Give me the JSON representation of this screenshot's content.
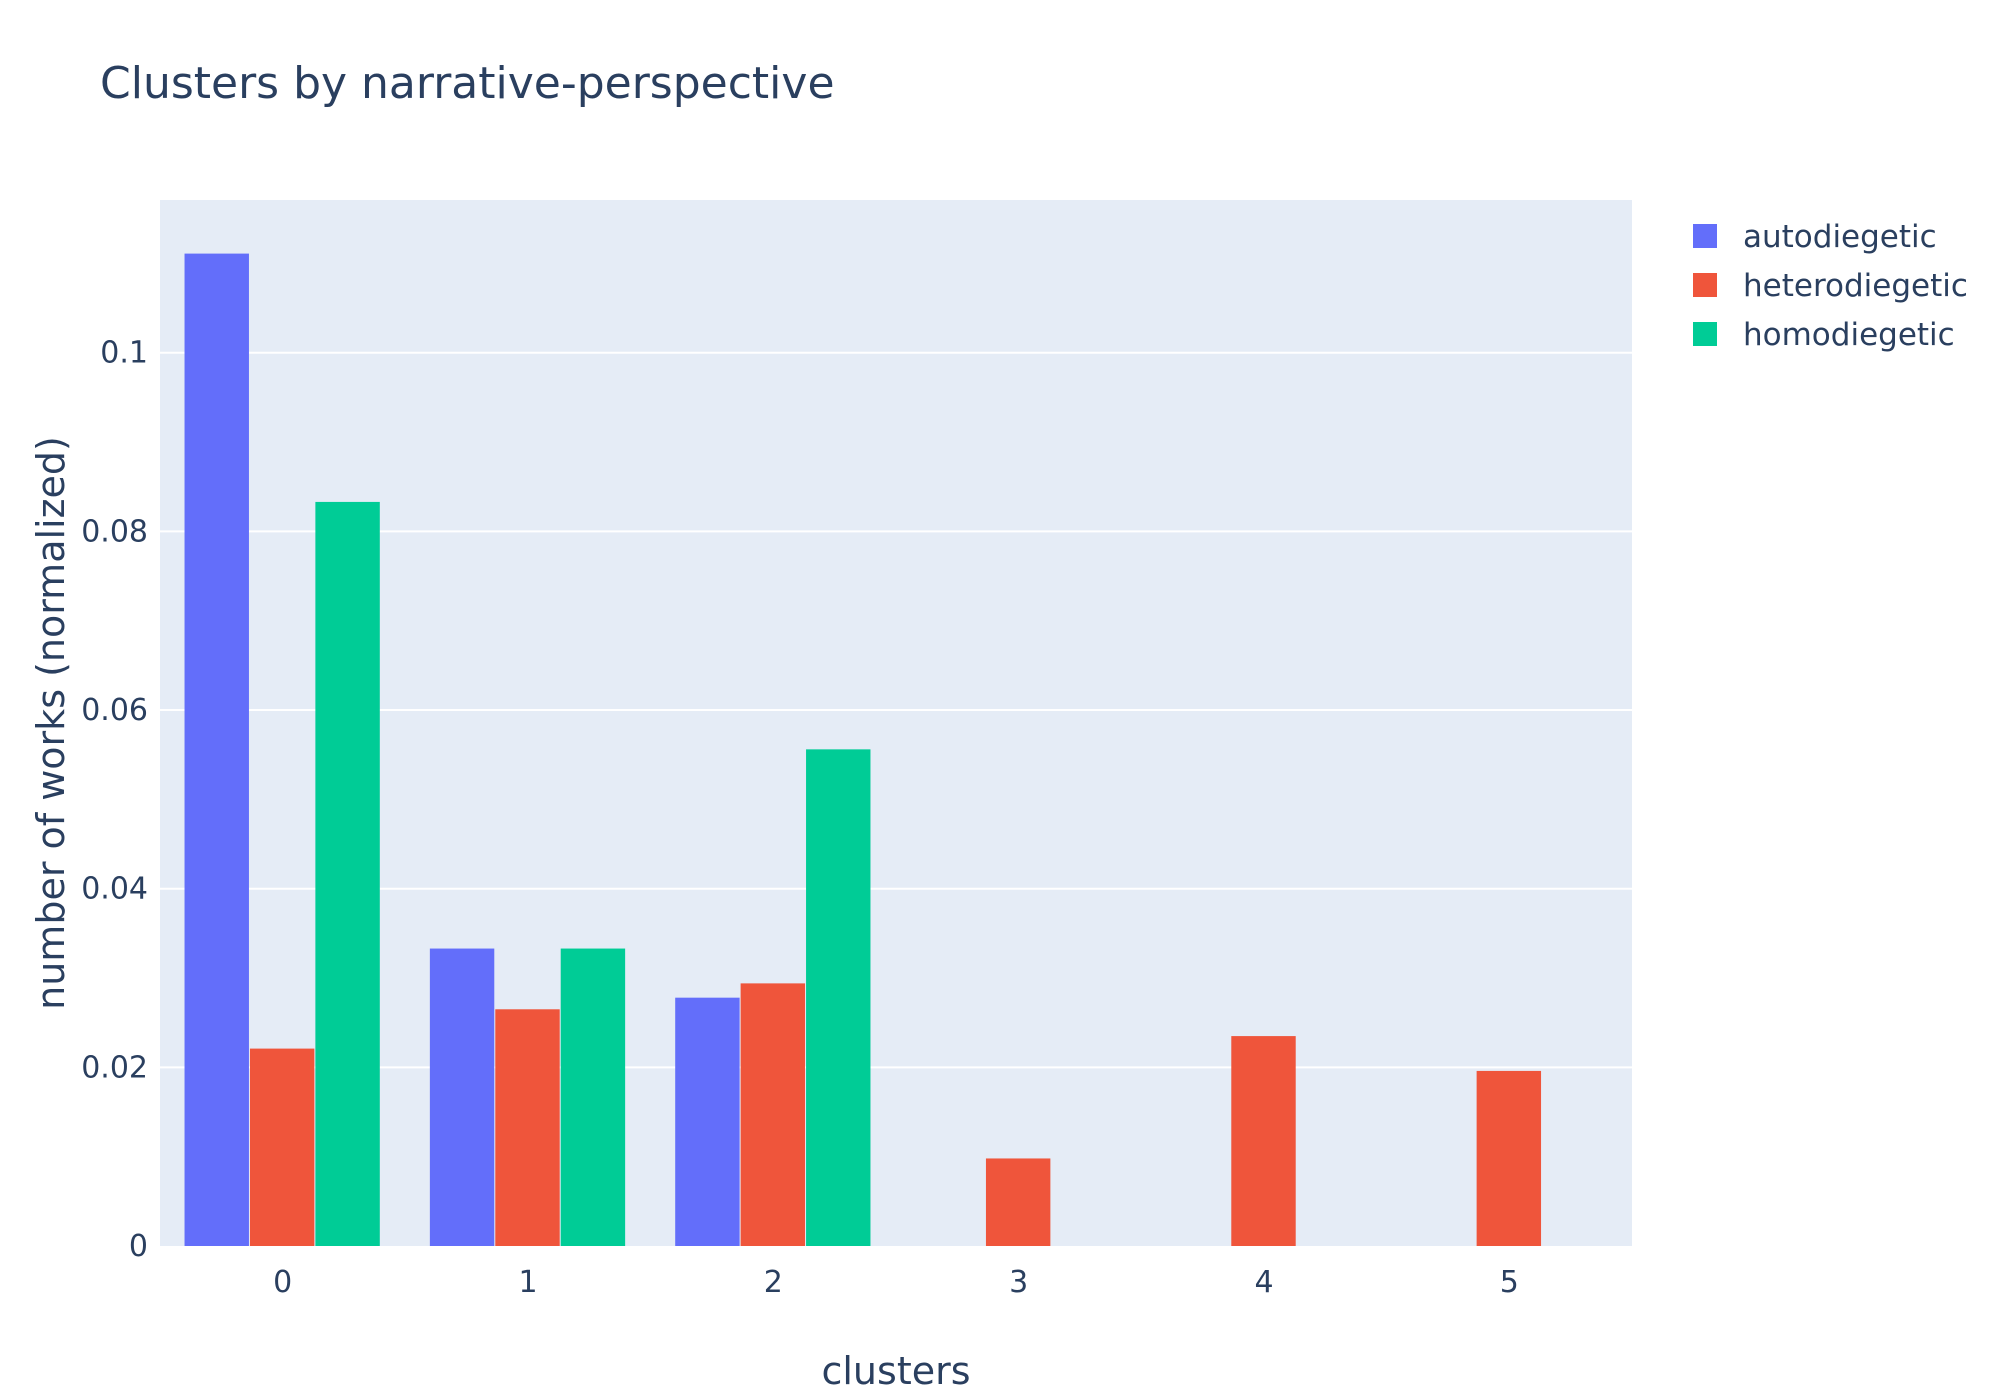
{
  "chart_data": {
    "type": "bar",
    "title": "Clusters by narrative-perspective",
    "xlabel": "clusters",
    "ylabel": "number of works (normalized)",
    "categories": [
      "0",
      "1",
      "2",
      "3",
      "4",
      "5"
    ],
    "ylim": [
      0,
      0.1171
    ],
    "yticks": [
      0,
      0.02,
      0.04,
      0.06,
      0.08,
      0.1
    ],
    "ytick_labels": [
      "0",
      "0.02",
      "0.04",
      "0.06",
      "0.08",
      "0.1"
    ],
    "grid": true,
    "legend_position": "top-right",
    "series": [
      {
        "name": "autodiegetic",
        "color": "#636efa",
        "values": [
          0.1111,
          0.0333,
          0.0278,
          0,
          0,
          0
        ]
      },
      {
        "name": "heterodiegetic",
        "color": "#ef553b",
        "values": [
          0.0221,
          0.0265,
          0.0294,
          0.0098,
          0.0235,
          0.0196
        ]
      },
      {
        "name": "homodiegetic",
        "color": "#00cc96",
        "values": [
          0.0833,
          0.0333,
          0.0556,
          0,
          0,
          0
        ]
      }
    ],
    "background": "#e5ecf6",
    "gridcolor": "#ffffff"
  }
}
